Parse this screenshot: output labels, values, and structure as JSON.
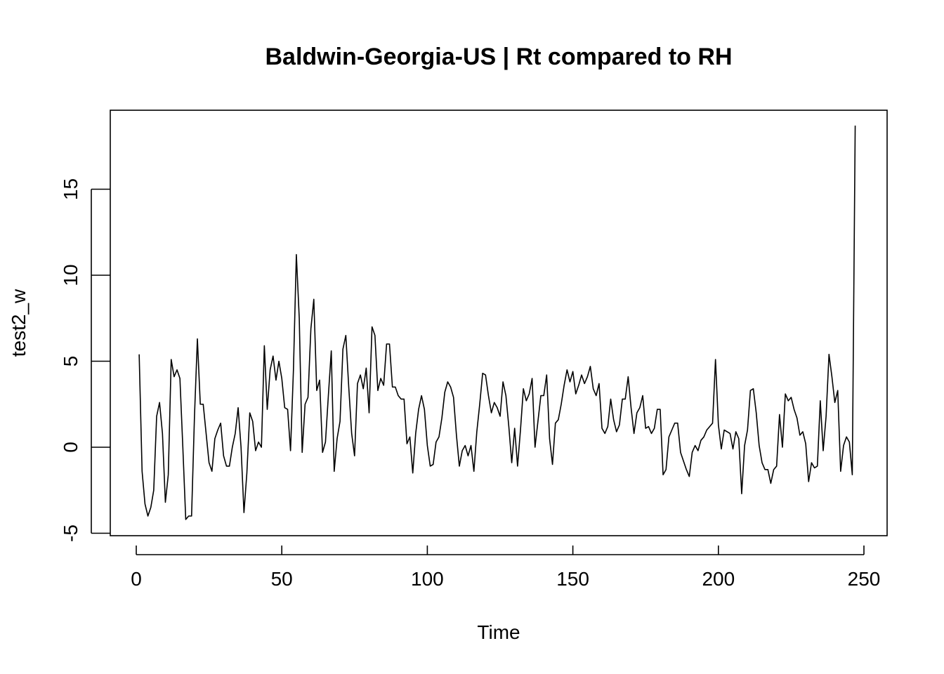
{
  "chart_data": {
    "type": "line",
    "title": "Baldwin-Georgia-US | Rt compared to RH",
    "xlabel": "Time",
    "ylabel": "test2_w",
    "xlim": [
      1,
      248
    ],
    "ylim": [
      -4.2,
      18.7
    ],
    "xticks": [
      0,
      50,
      100,
      150,
      200,
      250
    ],
    "yticks": [
      -5,
      0,
      5,
      10,
      15
    ],
    "grid": false,
    "legend": "none",
    "series": [
      {
        "x_start": 1,
        "values": [
          5.4,
          -1.4,
          -3.3,
          -4.0,
          -3.5,
          -2.5,
          1.8,
          2.6,
          0.8,
          -3.2,
          -1.6,
          5.1,
          4.1,
          4.5,
          4.0,
          0.0,
          -4.2,
          -4.0,
          -4.0,
          1.8,
          6.3,
          2.5,
          2.5,
          0.8,
          -0.9,
          -1.4,
          0.5,
          1.0,
          1.4,
          -0.5,
          -1.1,
          -1.1,
          0.0,
          0.8,
          2.3,
          0.0,
          -3.8,
          -1.5,
          2.0,
          1.5,
          -0.2,
          0.3,
          0.0,
          5.9,
          2.2,
          4.5,
          5.3,
          3.9,
          5.0,
          4.0,
          2.3,
          2.2,
          -0.2,
          4.5,
          11.2,
          7.5,
          -0.3,
          2.5,
          2.9,
          6.9,
          8.6,
          3.3,
          3.9,
          -0.3,
          0.3,
          3.0,
          5.6,
          -1.4,
          0.5,
          1.5,
          5.7,
          6.5,
          3.5,
          0.8,
          -0.5,
          3.7,
          4.2,
          3.4,
          4.6,
          2.0,
          7.0,
          6.5,
          3.3,
          4.0,
          3.6,
          6.0,
          6.0,
          3.5,
          3.5,
          3.0,
          2.8,
          2.8,
          0.2,
          0.6,
          -1.5,
          0.8,
          2.2,
          3.0,
          2.2,
          0.1,
          -1.1,
          -1.0,
          0.3,
          0.6,
          1.7,
          3.2,
          3.8,
          3.5,
          2.9,
          0.7,
          -1.1,
          -0.2,
          0.1,
          -0.5,
          0.1,
          -1.4,
          0.9,
          2.5,
          4.3,
          4.2,
          3.0,
          2.0,
          2.6,
          2.3,
          1.8,
          3.8,
          3.0,
          1.2,
          -0.9,
          1.1,
          -1.1,
          1.0,
          3.4,
          2.7,
          3.1,
          4.0,
          0.0,
          1.5,
          3.0,
          3.0,
          4.2,
          0.5,
          -1.0,
          1.4,
          1.6,
          2.5,
          3.6,
          4.5,
          3.8,
          4.4,
          3.1,
          3.6,
          4.2,
          3.7,
          4.1,
          4.7,
          3.4,
          3.0,
          3.7,
          1.1,
          0.8,
          1.2,
          2.8,
          1.6,
          0.9,
          1.3,
          2.8,
          2.8,
          4.1,
          2.3,
          0.8,
          2.0,
          2.3,
          3.0,
          1.1,
          1.2,
          0.8,
          1.1,
          2.2,
          2.2,
          -1.6,
          -1.3,
          0.6,
          1.0,
          1.4,
          1.4,
          -0.3,
          -0.8,
          -1.3,
          -1.7,
          -0.3,
          0.1,
          -0.2,
          0.4,
          0.6,
          1.0,
          1.2,
          1.4,
          5.1,
          1.3,
          -0.1,
          1.0,
          0.9,
          0.8,
          -0.1,
          0.9,
          0.5,
          -2.7,
          0.1,
          1.0,
          3.3,
          3.4,
          2.0,
          0.1,
          -0.9,
          -1.3,
          -1.3,
          -2.1,
          -1.3,
          -1.1,
          1.9,
          0.0,
          3.1,
          2.7,
          2.9,
          2.2,
          1.7,
          0.7,
          0.9,
          0.2,
          -2.0,
          -0.9,
          -1.2,
          -1.1,
          2.7,
          -0.2,
          1.8,
          5.4,
          4.1,
          2.6,
          3.3,
          -1.4,
          0.1,
          0.6,
          0.3,
          -1.6,
          18.7
        ]
      }
    ]
  }
}
